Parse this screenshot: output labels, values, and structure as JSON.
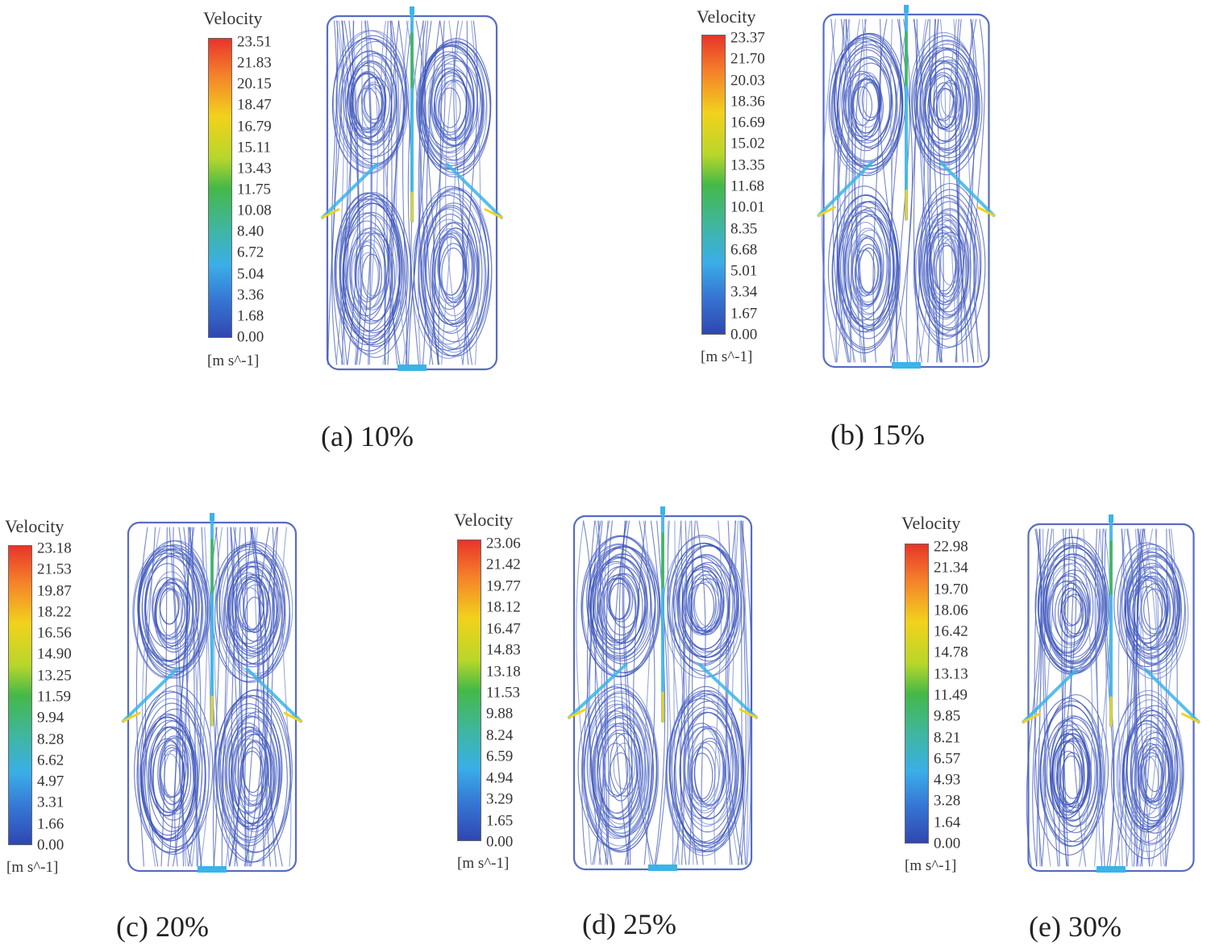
{
  "colors": {
    "streamline": "#3a52b8",
    "streamline_light": "#6f84d4",
    "jet": "#3ab4e6",
    "hot": "#f2d21c",
    "green": "#45b848"
  },
  "panels": [
    {
      "legend_title": "Velocity",
      "ticks": [
        "23.51",
        "21.83",
        "20.15",
        "18.47",
        "16.79",
        "15.11",
        "13.43",
        "11.75",
        "10.08",
        "8.40",
        "6.72",
        "5.04",
        "3.36",
        "1.68",
        "0.00"
      ],
      "unit": "[m s^-1]",
      "caption": "(a) 10%"
    },
    {
      "legend_title": "Velocity",
      "ticks": [
        "23.37",
        "21.70",
        "20.03",
        "18.36",
        "16.69",
        "15.02",
        "13.35",
        "11.68",
        "10.01",
        "8.35",
        "6.68",
        "5.01",
        "3.34",
        "1.67",
        "0.00"
      ],
      "unit": "[m s^-1]",
      "caption": "(b) 15%"
    },
    {
      "legend_title": "Velocity",
      "ticks": [
        "23.18",
        "21.53",
        "19.87",
        "18.22",
        "16.56",
        "14.90",
        "13.25",
        "11.59",
        "9.94",
        "8.28",
        "6.62",
        "4.97",
        "3.31",
        "1.66",
        "0.00"
      ],
      "unit": "[m s^-1]",
      "caption": "(c) 20%"
    },
    {
      "legend_title": "Velocity",
      "ticks": [
        "23.06",
        "21.42",
        "19.77",
        "18.12",
        "16.47",
        "14.83",
        "13.18",
        "11.53",
        "9.88",
        "8.24",
        "6.59",
        "4.94",
        "3.29",
        "1.65",
        "0.00"
      ],
      "unit": "[m s^-1]",
      "caption": "(d) 25%"
    },
    {
      "legend_title": "Velocity",
      "ticks": [
        "22.98",
        "21.34",
        "19.70",
        "18.06",
        "16.42",
        "14.78",
        "13.13",
        "11.49",
        "9.85",
        "8.21",
        "6.57",
        "4.93",
        "3.28",
        "1.64",
        "0.00"
      ],
      "unit": "[m s^-1]",
      "caption": "(e) 30%"
    }
  ]
}
